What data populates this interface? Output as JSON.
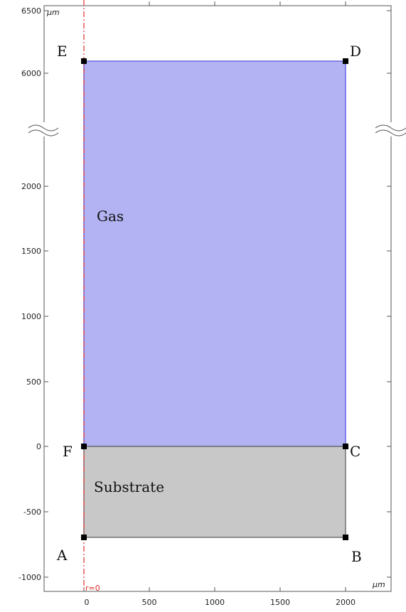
{
  "units": {
    "top": "µm",
    "bottom": "µm"
  },
  "y_ticks": [
    "6500",
    "6000",
    "2000",
    "1500",
    "1000",
    "500",
    "0",
    "-500",
    "-1000"
  ],
  "x_ticks": [
    "0",
    "500",
    "1000",
    "1500",
    "2000"
  ],
  "points": {
    "A": "A",
    "B": "B",
    "C": "C",
    "D": "D",
    "E": "E",
    "F": "F"
  },
  "regions": {
    "gas": "Gas",
    "substrate": "Substrate"
  },
  "axis_label": "r=0",
  "colors": {
    "gas_fill": "#b3b3f3",
    "gas_stroke": "#4a4ae0",
    "substrate_fill": "#c8c8c8",
    "substrate_stroke": "#555555",
    "axis_line": "#e03030",
    "frame": "#555555",
    "marker": "#000000"
  }
}
